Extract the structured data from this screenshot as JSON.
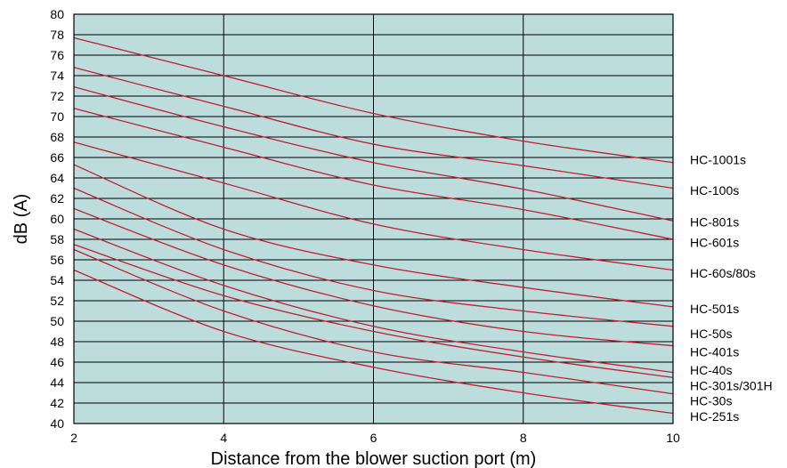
{
  "chart_data": {
    "type": "line",
    "title": "",
    "xlabel": "Distance from the blower suction port (m)",
    "ylabel": "dB (A)",
    "xlim": [
      2,
      10
    ],
    "ylim": [
      40,
      80
    ],
    "xticks": [
      "2",
      "4",
      "6",
      "8",
      "10"
    ],
    "yticks": [
      "40",
      "42",
      "44",
      "46",
      "48",
      "50",
      "52",
      "54",
      "56",
      "58",
      "60",
      "62",
      "64",
      "66",
      "68",
      "70",
      "72",
      "74",
      "76",
      "78",
      "80"
    ],
    "grid": true,
    "colors": {
      "plot_background": "#bddcdc",
      "line": "#c0202e",
      "grid": "#000000"
    },
    "series": [
      {
        "name": "HC-1001s",
        "label_y": 65.8,
        "x": [
          2,
          4,
          6,
          8,
          10
        ],
        "y": [
          77.7,
          74.0,
          70.3,
          67.6,
          65.5
        ]
      },
      {
        "name": "HC-100s",
        "label_y": 62.8,
        "x": [
          2,
          4,
          6,
          8,
          10
        ],
        "y": [
          74.8,
          71.0,
          67.3,
          65.2,
          63.0
        ]
      },
      {
        "name": "HC-801s",
        "label_y": 59.7,
        "x": [
          2,
          4,
          6,
          8,
          10
        ],
        "y": [
          72.9,
          69.0,
          65.5,
          62.9,
          59.8
        ]
      },
      {
        "name": "HC-601s",
        "label_y": 57.7,
        "x": [
          2,
          4,
          6,
          8,
          10
        ],
        "y": [
          70.8,
          67.0,
          63.3,
          60.9,
          58.0
        ]
      },
      {
        "name": "HC-60s/80s",
        "label_y": 54.7,
        "x": [
          2,
          4,
          6,
          8,
          10
        ],
        "y": [
          67.5,
          63.5,
          59.5,
          57.0,
          55.0
        ]
      },
      {
        "name": "HC-501s",
        "label_y": 51.2,
        "x": [
          2,
          4,
          6,
          8,
          10
        ],
        "y": [
          65.3,
          59.0,
          55.5,
          53.3,
          51.4
        ]
      },
      {
        "name": "HC-50s",
        "label_y": 48.8,
        "x": [
          2,
          4,
          6,
          8,
          10
        ],
        "y": [
          63.0,
          57.0,
          53.0,
          51.0,
          49.5
        ]
      },
      {
        "name": "HC-401s",
        "label_y": 47.0,
        "x": [
          2,
          4,
          6,
          8,
          10
        ],
        "y": [
          61.0,
          55.5,
          51.5,
          49.0,
          47.6
        ]
      },
      {
        "name": "HC-40s",
        "label_y": 45.2,
        "x": [
          2,
          4,
          6,
          8,
          10
        ],
        "y": [
          59.0,
          53.5,
          49.5,
          47.0,
          45.0
        ]
      },
      {
        "name": "HC-301s/301H",
        "label_y": 43.7,
        "x": [
          2,
          4,
          6,
          8,
          10
        ],
        "y": [
          57.5,
          52.5,
          49.0,
          46.5,
          44.5
        ]
      },
      {
        "name": "HC-30s",
        "label_y": 42.2,
        "x": [
          2,
          4,
          6,
          8,
          10
        ],
        "y": [
          57.0,
          51.0,
          47.0,
          45.0,
          42.9
        ]
      },
      {
        "name": "HC-251s",
        "label_y": 40.7,
        "x": [
          2,
          4,
          6,
          8,
          10
        ],
        "y": [
          55.0,
          49.0,
          45.5,
          43.0,
          41.0
        ]
      }
    ]
  }
}
